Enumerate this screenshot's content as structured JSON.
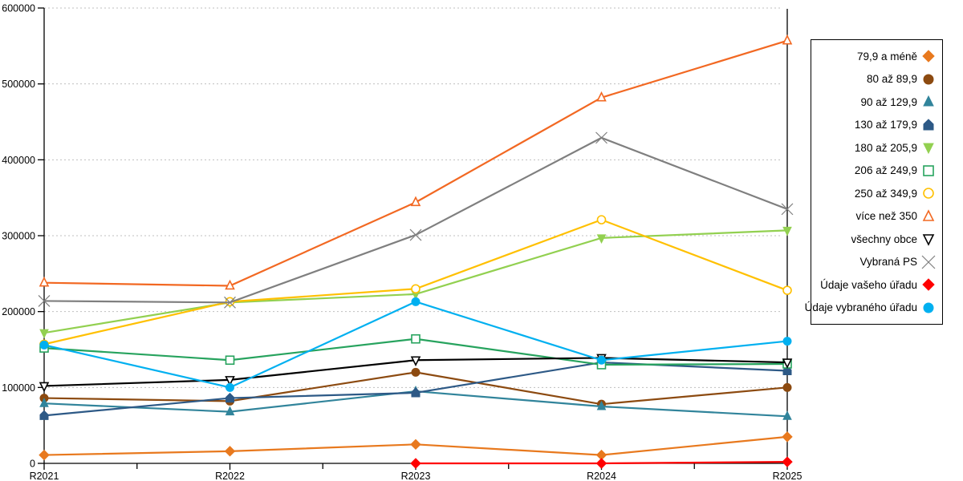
{
  "chart_data": {
    "type": "line",
    "title": "",
    "xlabel": "",
    "ylabel": "",
    "categories": [
      "R2021",
      "R2022",
      "R2023",
      "R2024",
      "R2025"
    ],
    "ylim": [
      0,
      600000
    ],
    "ytick_step": 100000,
    "grid": "horizontal-dotted",
    "legend_position": "right",
    "series": [
      {
        "name": "79,9 a méně",
        "color": "#E8791E",
        "marker": "diamond",
        "filled": true,
        "values": [
          11000,
          16000,
          25000,
          11000,
          35000
        ]
      },
      {
        "name": "80 až 89,9",
        "color": "#8C4A10",
        "marker": "circle",
        "filled": true,
        "values": [
          86000,
          82000,
          120000,
          78000,
          100000
        ]
      },
      {
        "name": "90 až 129,9",
        "color": "#31849B",
        "marker": "triangle-up",
        "filled": true,
        "values": [
          79000,
          68000,
          95000,
          75000,
          62000
        ]
      },
      {
        "name": "130 až 179,9",
        "color": "#2D5986",
        "marker": "pentagon",
        "filled": true,
        "values": [
          63000,
          86000,
          93000,
          133000,
          122000
        ]
      },
      {
        "name": "180 až 205,9",
        "color": "#92D050",
        "marker": "triangle-down",
        "filled": true,
        "values": [
          172000,
          212000,
          223000,
          297000,
          307000
        ]
      },
      {
        "name": "206 až 249,9",
        "color": "#27A35E",
        "marker": "square",
        "filled": false,
        "values": [
          152000,
          136000,
          164000,
          130000,
          131000
        ]
      },
      {
        "name": "250 až 349,9",
        "color": "#FFC000",
        "marker": "circle",
        "filled": false,
        "values": [
          157000,
          213000,
          230000,
          321000,
          228000
        ]
      },
      {
        "name": "více než 350",
        "color": "#F26822",
        "marker": "triangle-up",
        "filled": false,
        "values": [
          238000,
          234000,
          344000,
          482000,
          557000
        ]
      },
      {
        "name": "všechny obce",
        "color": "#000000",
        "marker": "triangle-down",
        "filled": false,
        "values": [
          102000,
          110000,
          136000,
          139000,
          133000
        ]
      },
      {
        "name": "Vybraná PS",
        "color": "#7F7F7F",
        "marker": "x",
        "filled": false,
        "values": [
          214000,
          212000,
          301000,
          429000,
          335000
        ]
      },
      {
        "name": "Údaje vašeho úřadu",
        "color": "#FF0000",
        "marker": "diamond",
        "filled": true,
        "values": [
          null,
          null,
          0,
          0,
          2000
        ]
      },
      {
        "name": "Údaje vybraného úřadu",
        "color": "#00B0F0",
        "marker": "circle",
        "filled": true,
        "values": [
          156000,
          100000,
          213000,
          136000,
          161000
        ]
      }
    ]
  },
  "axis": {
    "y_tick_labels": [
      "0",
      "100000",
      "200000",
      "300000",
      "400000",
      "500000",
      "600000"
    ],
    "x_tick_labels": [
      "R2021",
      "R2022",
      "R2023",
      "R2024",
      "R2025"
    ]
  },
  "colors": {
    "axis": "#000000",
    "gridline": "#bfbfbf",
    "background": "#ffffff",
    "text": "#000000"
  }
}
